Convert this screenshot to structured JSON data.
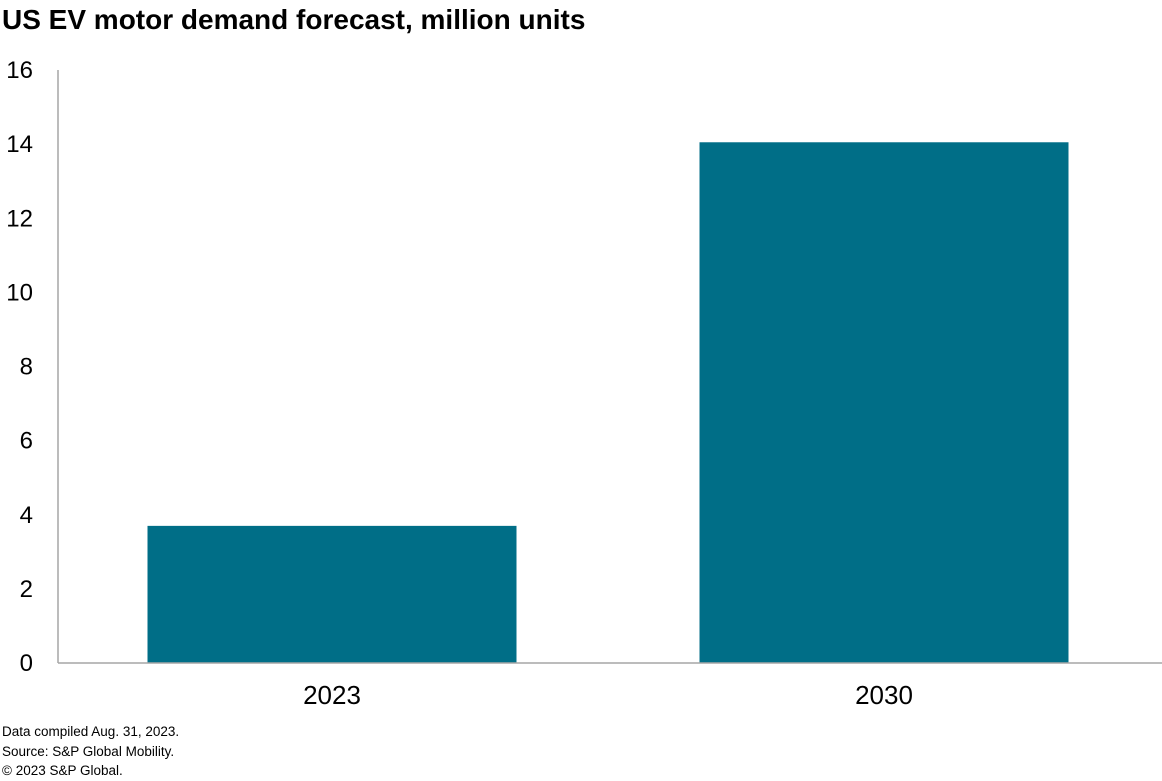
{
  "chart_data": {
    "type": "bar",
    "title": "US EV motor demand forecast, million units",
    "categories": [
      "2023",
      "2030"
    ],
    "values": [
      3.7,
      14.05
    ],
    "ylim": [
      0,
      16
    ],
    "yticks": [
      "0",
      "2",
      "4",
      "6",
      "8",
      "10",
      "12",
      "14",
      "16"
    ],
    "grid": false,
    "legend": "none",
    "bar_color": "#006e87",
    "axis_color": "#a6a6a6"
  },
  "footer": {
    "notes": [
      "Data compiled Aug. 31, 2023.",
      "Source: S&P Global Mobility.",
      "© 2023 S&P Global."
    ]
  }
}
